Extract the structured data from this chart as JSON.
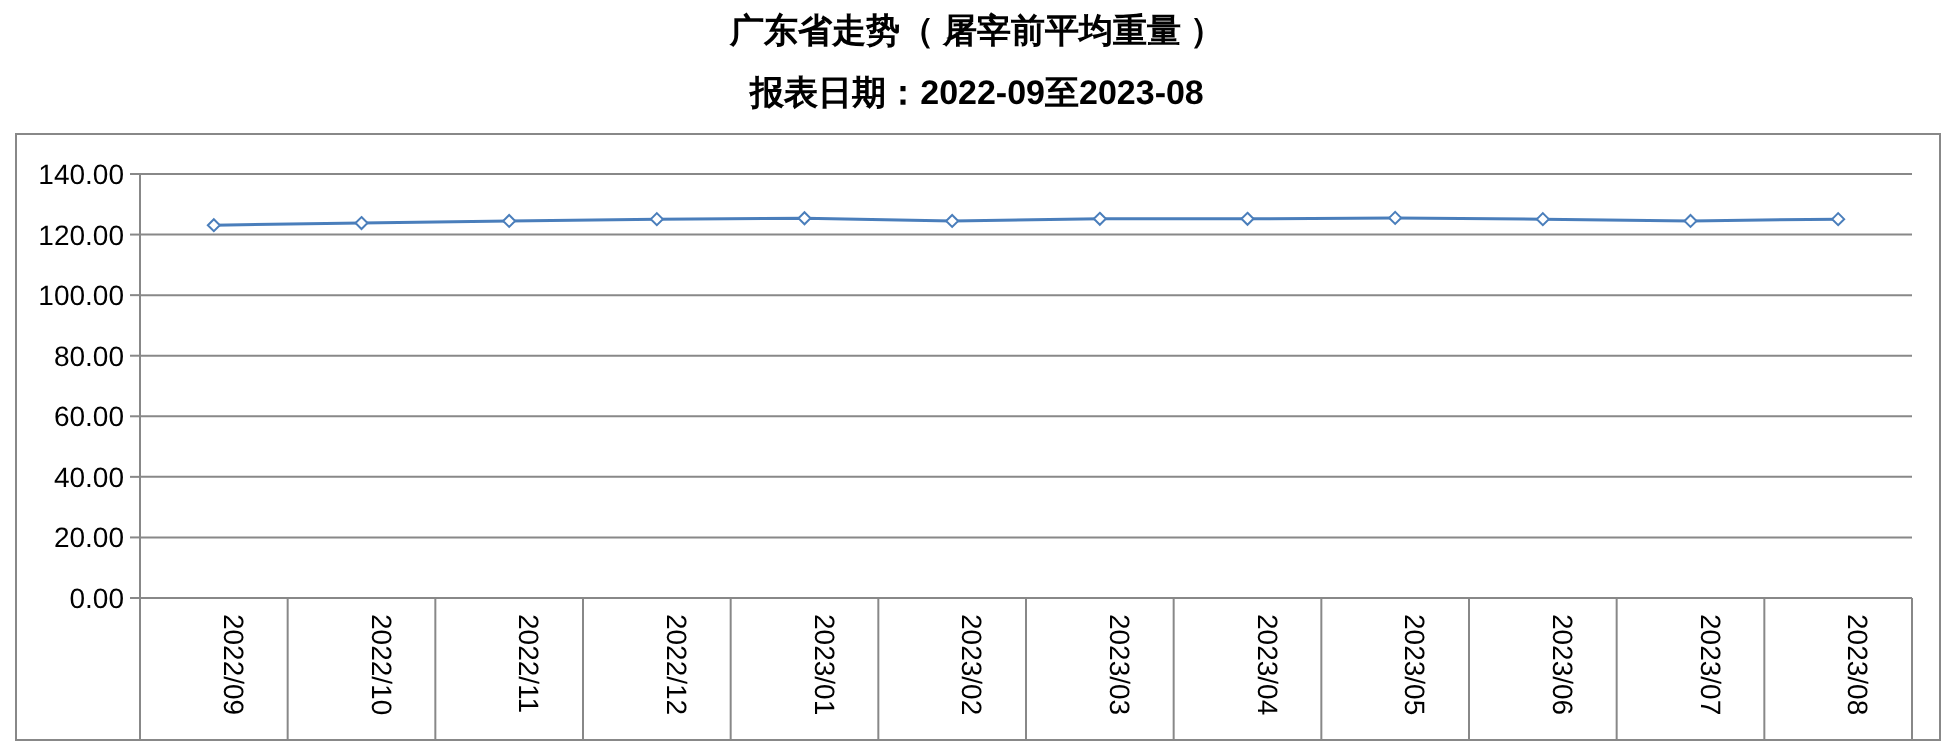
{
  "chart_data": {
    "type": "line",
    "title": "广东省走势（ 屠宰前平均重量 ）",
    "subtitle": "报表日期：2022-09至2023-08",
    "categories": [
      "2022/09",
      "2022/10",
      "2022/11",
      "2022/12",
      "2023/01",
      "2023/02",
      "2023/03",
      "2023/04",
      "2023/05",
      "2023/06",
      "2023/07",
      "2023/08"
    ],
    "series": [
      {
        "color": "#4a7ebb",
        "values": [
          123.1,
          123.8,
          124.5,
          125.1,
          125.4,
          124.5,
          125.2,
          125.2,
          125.5,
          125.1,
          124.5,
          125.1
        ]
      }
    ],
    "ylim": [
      0,
      140
    ],
    "yticks": [
      {
        "value": 0,
        "label": "0.00"
      },
      {
        "value": 20,
        "label": "20.00"
      },
      {
        "value": 40,
        "label": "40.00"
      },
      {
        "value": 60,
        "label": "60.00"
      },
      {
        "value": 80,
        "label": "80.00"
      },
      {
        "value": 100,
        "label": "100.00"
      },
      {
        "value": 120,
        "label": "120.00"
      },
      {
        "value": 140,
        "label": "140.00"
      }
    ],
    "grid": "y",
    "marker": "diamond",
    "line_style": "solid"
  }
}
